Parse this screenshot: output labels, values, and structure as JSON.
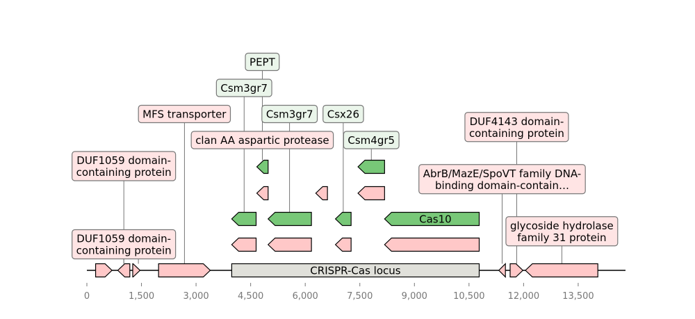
{
  "axis": {
    "min": 0,
    "max": 14800,
    "ticks": [
      0,
      1500,
      3000,
      4500,
      6000,
      7500,
      9000,
      10500,
      12000,
      13500
    ],
    "tick_labels": [
      "0",
      "1,500",
      "3,000",
      "4,500",
      "6,000",
      "7,500",
      "9,000",
      "10,500",
      "12,000",
      "13,500"
    ]
  },
  "colors": {
    "pink_fill": "#ffc8c8",
    "pink_label": "#ffe4e4",
    "green_fill": "#78c878",
    "green_label": "#eaf5ea",
    "locus_fill": "#e0e0da",
    "line": "#000000",
    "tick": "#777777"
  },
  "locus": {
    "label": "CRISPR-Cas locus",
    "start": 3980,
    "end": 10780
  },
  "genes": [
    {
      "start": 240,
      "end": 690,
      "strand": 1,
      "track": 0,
      "color": "pink"
    },
    {
      "start": 850,
      "end": 1180,
      "strand": -1,
      "track": 0,
      "color": "pink"
    },
    {
      "start": 1260,
      "end": 1460,
      "strand": 1,
      "track": 0,
      "color": "pink"
    },
    {
      "start": 1970,
      "end": 3390,
      "strand": 1,
      "track": 0,
      "color": "pink"
    },
    {
      "start": 11320,
      "end": 11500,
      "strand": -1,
      "track": 0,
      "color": "pink"
    },
    {
      "start": 11630,
      "end": 11980,
      "strand": 1,
      "track": 0,
      "color": "pink"
    },
    {
      "start": 12050,
      "end": 14040,
      "strand": -1,
      "track": 0,
      "color": "pink"
    },
    {
      "start": 3980,
      "end": 4650,
      "strand": -1,
      "track": 1,
      "color": "pink"
    },
    {
      "start": 4980,
      "end": 6170,
      "strand": -1,
      "track": 1,
      "color": "pink"
    },
    {
      "start": 6830,
      "end": 7260,
      "strand": -1,
      "track": 1,
      "color": "pink"
    },
    {
      "start": 8180,
      "end": 10780,
      "strand": -1,
      "track": 1,
      "color": "pink"
    },
    {
      "start": 3980,
      "end": 4650,
      "strand": -1,
      "track": 2,
      "color": "green"
    },
    {
      "start": 4980,
      "end": 6170,
      "strand": -1,
      "track": 2,
      "color": "green"
    },
    {
      "start": 6830,
      "end": 7260,
      "strand": -1,
      "track": 2,
      "color": "green"
    },
    {
      "start": 8180,
      "end": 10780,
      "strand": -1,
      "track": 2,
      "color": "green",
      "label": "Cas10"
    },
    {
      "start": 4670,
      "end": 4980,
      "strand": -1,
      "track": 3,
      "color": "pink"
    },
    {
      "start": 6290,
      "end": 6610,
      "strand": -1,
      "track": 3,
      "color": "pink"
    },
    {
      "start": 7450,
      "end": 8180,
      "strand": -1,
      "track": 3,
      "color": "pink"
    },
    {
      "start": 4670,
      "end": 4980,
      "strand": -1,
      "track": 4,
      "color": "green"
    },
    {
      "start": 7450,
      "end": 8180,
      "strand": -1,
      "track": 4,
      "color": "green"
    }
  ],
  "labels": [
    {
      "lines": [
        "DUF1059 domain-",
        "containing protein"
      ],
      "color": "pink",
      "pos": 1015,
      "lvl": 1
    },
    {
      "lines": [
        "DUF1059 domain-",
        "containing protein"
      ],
      "color": "pink",
      "pos": 1015,
      "lvl": 4
    },
    {
      "lines": [
        "MFS transporter"
      ],
      "color": "pink",
      "pos": 2680,
      "lvl": 6
    },
    {
      "lines": [
        "clan AA aspartic protease"
      ],
      "color": "pink",
      "pos": 4820,
      "lvl": 5
    },
    {
      "lines": [
        "Csm3gr7"
      ],
      "color": "green",
      "pos": 4320,
      "lvl": 7
    },
    {
      "lines": [
        "PEPT"
      ],
      "color": "green",
      "pos": 4820,
      "lvl": 8
    },
    {
      "lines": [
        "Csm3gr7"
      ],
      "color": "green",
      "pos": 5570,
      "lvl": 6
    },
    {
      "lines": [
        "Csx26"
      ],
      "color": "green",
      "pos": 7045,
      "lvl": 6
    },
    {
      "lines": [
        "Csm4gr5"
      ],
      "color": "green",
      "pos": 7815,
      "lvl": 5
    },
    {
      "lines": [
        "DUF4143 domain-",
        "containing protein"
      ],
      "color": "pink",
      "pos": 11810,
      "lvl": 5.5
    },
    {
      "lines": [
        "AbrB/MazE/SpoVT family DNA-",
        "binding domain-contain…"
      ],
      "color": "pink",
      "pos": 11410,
      "lvl": 3.5
    },
    {
      "lines": [
        "glycoside hydrolase",
        "family 31 protein"
      ],
      "color": "pink",
      "pos": 13050,
      "lvl": 1.5
    }
  ],
  "link_lines": [
    {
      "pos": 1015,
      "from_lvl": 4,
      "to_track": 0
    },
    {
      "pos": 1015,
      "from_lvl": 1,
      "to_track": 0
    },
    {
      "pos": 1415,
      "from_lvl": 1,
      "to_track": 0
    },
    {
      "pos": 2680,
      "from_lvl": 6,
      "to_track": 0
    },
    {
      "pos": 4320,
      "from_lvl": 7,
      "to_track": 2
    },
    {
      "pos": 4820,
      "from_lvl": 8,
      "to_track": 4
    },
    {
      "pos": 5570,
      "from_lvl": 6,
      "to_track": 2
    },
    {
      "pos": 7045,
      "from_lvl": 6,
      "to_track": 2
    },
    {
      "pos": 7815,
      "from_lvl": 5,
      "to_track": 4
    },
    {
      "pos": 11810,
      "from_lvl": 5.5,
      "to_track": 0
    },
    {
      "pos": 11410,
      "from_lvl": 3.5,
      "to_track": 0
    },
    {
      "pos": 13050,
      "from_lvl": 1.5,
      "to_track": 0
    }
  ]
}
